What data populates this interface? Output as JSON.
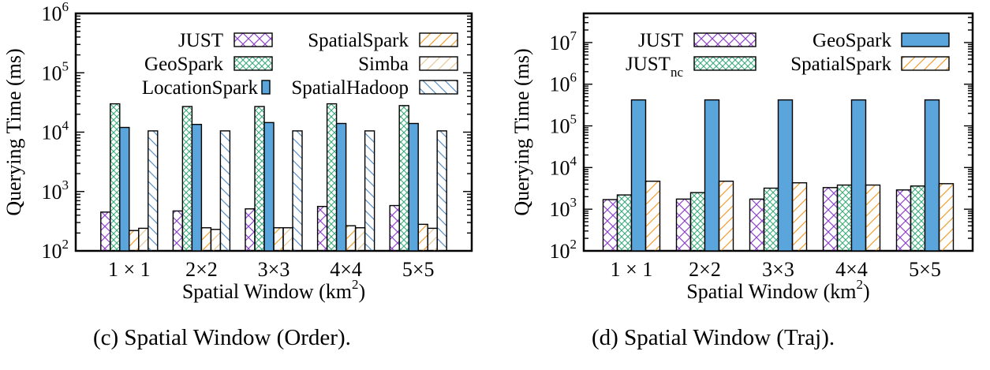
{
  "chart_data": [
    {
      "type": "bar",
      "log_scale_y": true,
      "ylim": [
        100,
        1000000
      ],
      "ylabel": "Querying Time (ms)",
      "xlabel": "Spatial Window (km",
      "xlabel_sup": "2",
      "xlabel_end": ")",
      "y_tick_base": "10",
      "y_tick_exponents": [
        "2",
        "3",
        "4",
        "5",
        "6"
      ],
      "categories": [
        "1 × 1",
        "2×2",
        "3×3",
        "4×4",
        "5×5"
      ],
      "legend_placement": "top",
      "series": [
        {
          "name": "JUST",
          "values": [
            450,
            470,
            510,
            560,
            580
          ]
        },
        {
          "name": "GeoSpark",
          "values": [
            30000,
            27000,
            27000,
            30000,
            28000
          ]
        },
        {
          "name": "LocationSpark",
          "values": [
            12000,
            13500,
            14500,
            14000,
            14000
          ]
        },
        {
          "name": "SpatialSpark",
          "values": [
            220,
            245,
            245,
            265,
            280
          ]
        },
        {
          "name": "Simba",
          "values": [
            240,
            230,
            245,
            245,
            240
          ]
        },
        {
          "name": "SpatialHadoop",
          "values": [
            10500,
            10500,
            10500,
            10500,
            10500
          ]
        }
      ],
      "caption": "(c) Spatial Window (Order)."
    },
    {
      "type": "bar",
      "log_scale_y": true,
      "ylim": [
        100,
        50000000
      ],
      "ylabel": "Querying Time (ms)",
      "xlabel": "Spatial Window (km",
      "xlabel_sup": "2",
      "xlabel_end": ")",
      "y_tick_base": "10",
      "y_tick_exponents": [
        "2",
        "3",
        "4",
        "5",
        "6",
        "7"
      ],
      "categories": [
        "1 × 1",
        "2×2",
        "3×3",
        "4×4",
        "5×5"
      ],
      "legend_placement": "top",
      "series": [
        {
          "name": "JUST",
          "values": [
            1700,
            1750,
            1750,
            3300,
            2900
          ]
        },
        {
          "name": "JUST",
          "name_sub": "nc",
          "values": [
            2200,
            2500,
            3200,
            3800,
            3600
          ]
        },
        {
          "name": "GeoSpark",
          "values": [
            420000,
            420000,
            420000,
            420000,
            420000
          ]
        },
        {
          "name": "SpatialSpark",
          "values": [
            4700,
            4700,
            4300,
            3800,
            4100
          ]
        }
      ],
      "caption": "(d) Spatial Window (Traj)."
    }
  ],
  "colors": {
    "purple_hatch": "#8e44c8",
    "green_hatch": "#3aaa7a",
    "blue_fill": "#5aa6dc",
    "orange_hatch": "#f0a030",
    "beige_hatch": "#e8c898",
    "steel_hatch": "#5a90c8"
  }
}
